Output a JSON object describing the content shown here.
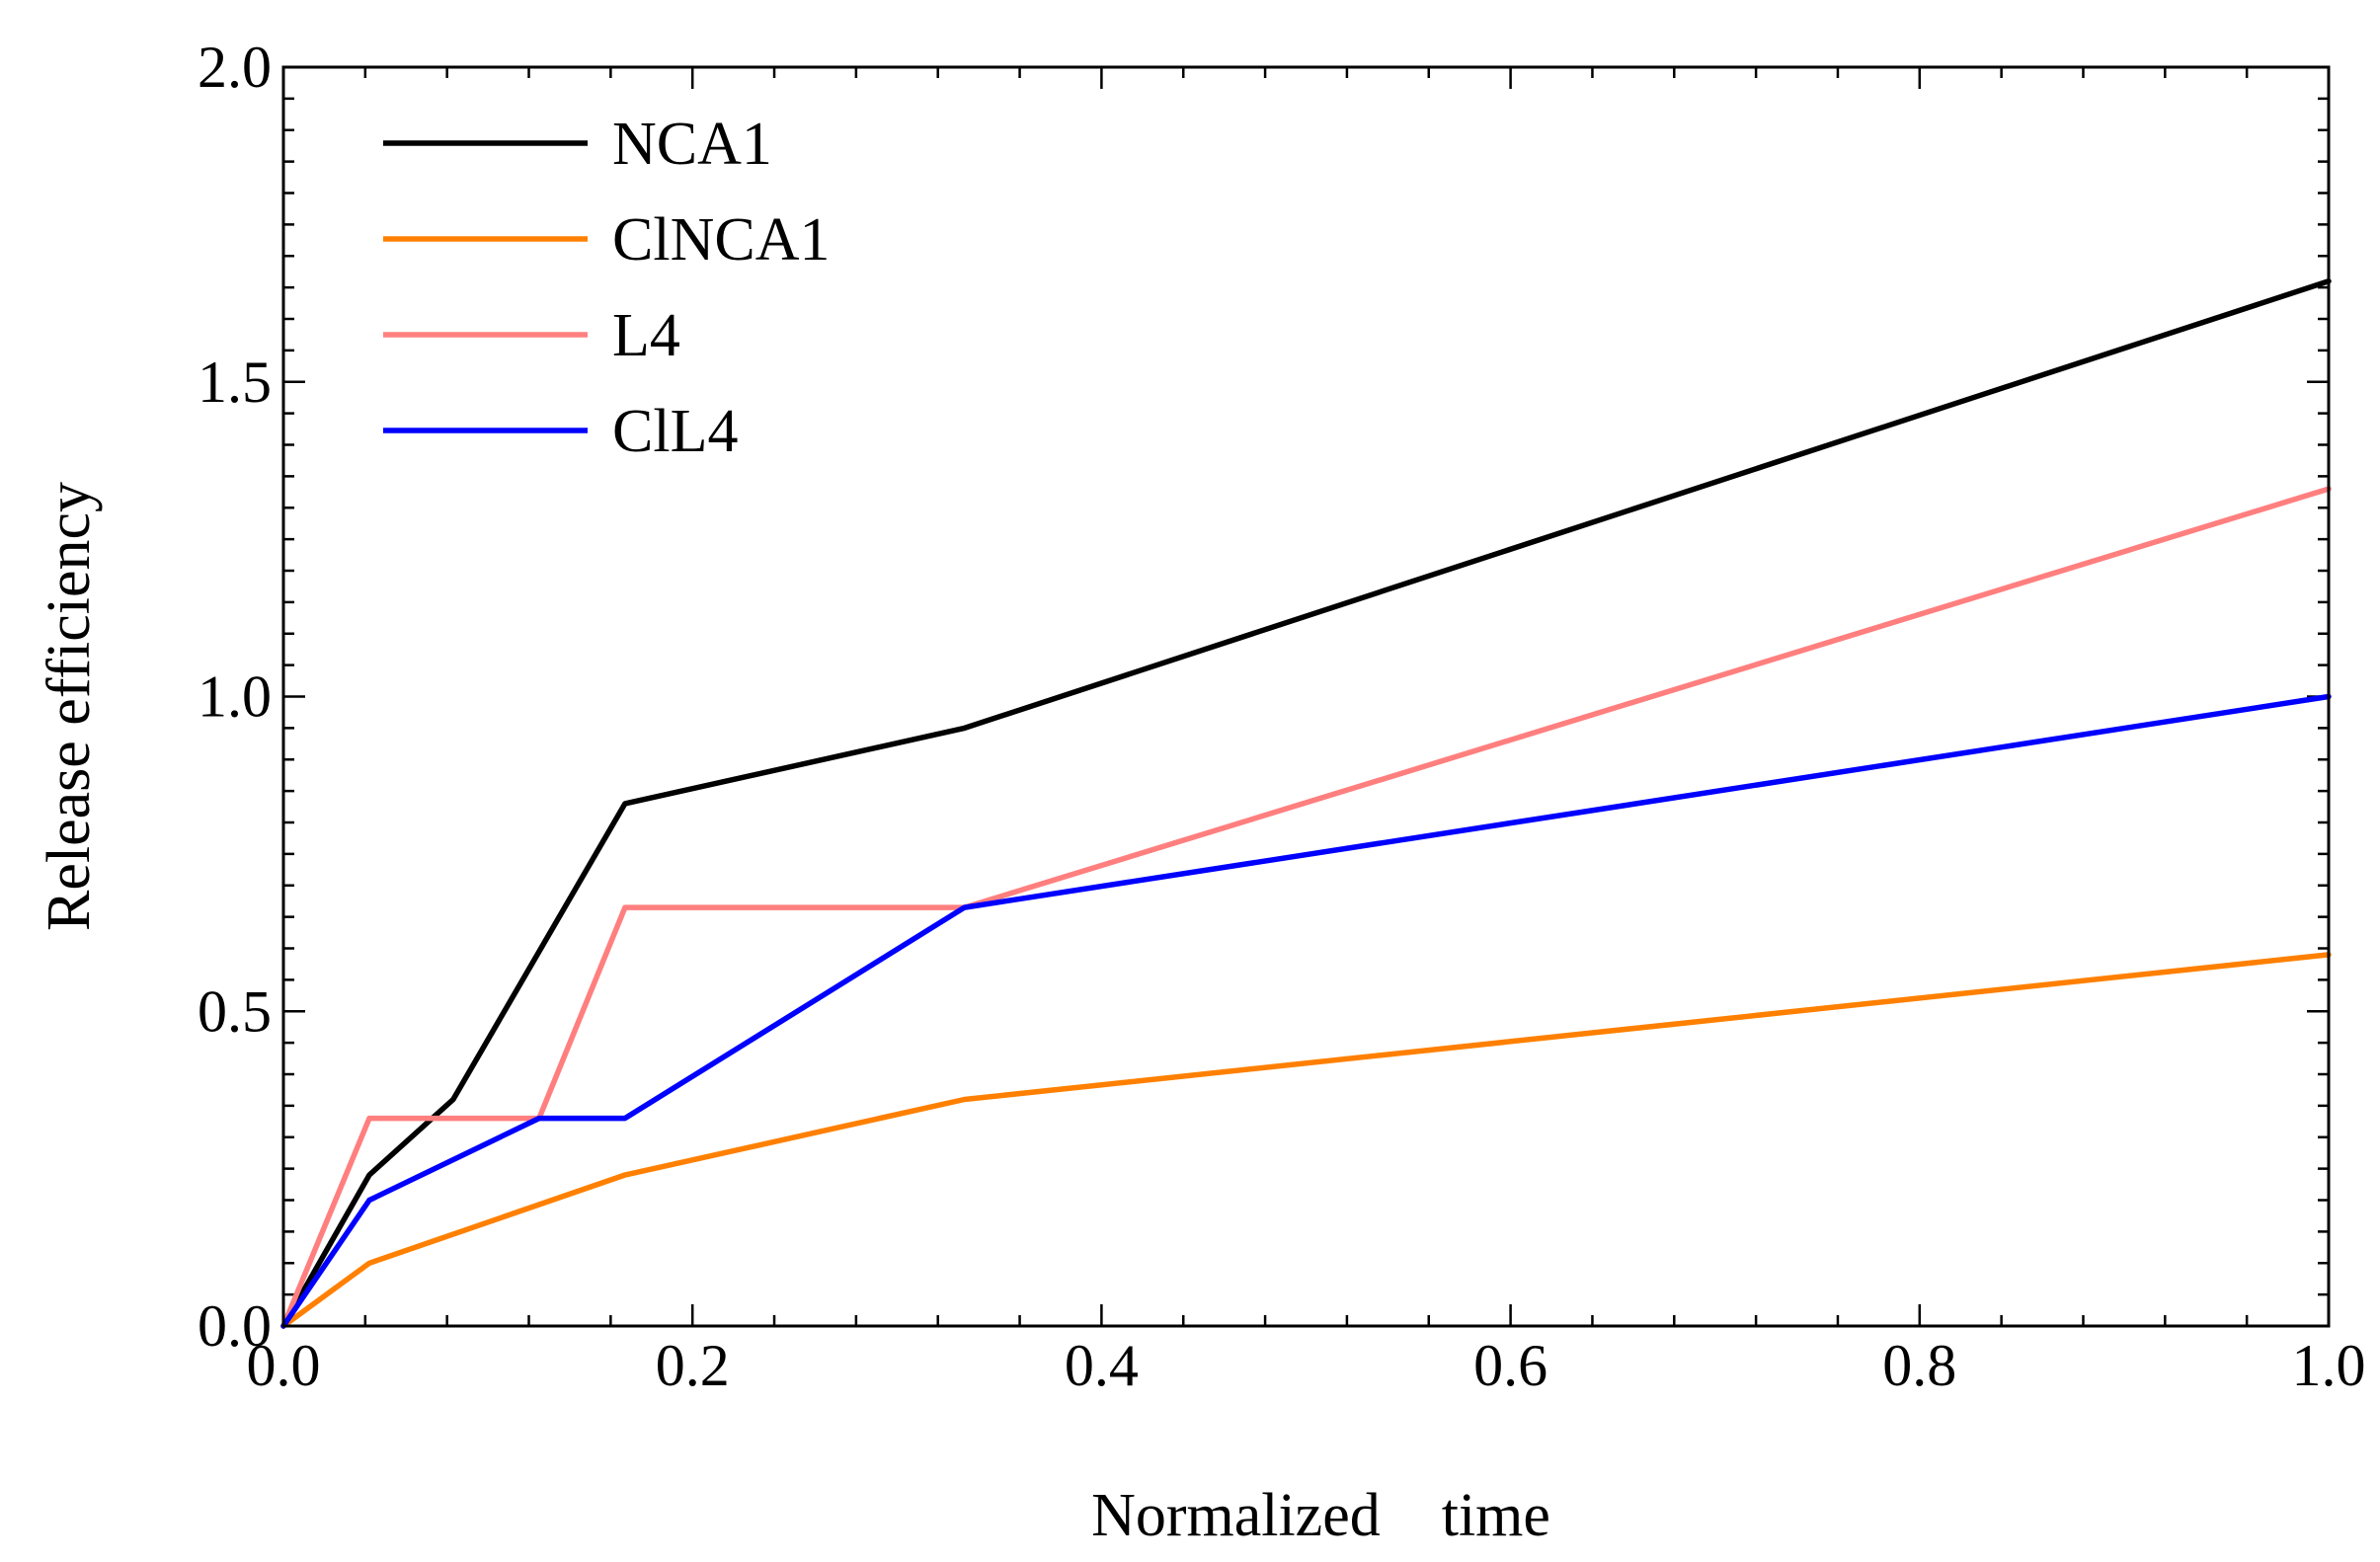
{
  "chart_data": {
    "type": "line",
    "title": "",
    "xlabel": "Normalized    time",
    "ylabel": "Release efficiency",
    "xlim": [
      0.0,
      1.0
    ],
    "ylim": [
      0.0,
      2.0
    ],
    "xticks": [
      0.0,
      0.2,
      0.4,
      0.6,
      0.8,
      1.0
    ],
    "yticks": [
      0.0,
      0.5,
      1.0,
      1.5,
      2.0
    ],
    "xtick_labels": [
      "0.0",
      "0.2",
      "0.4",
      "0.6",
      "0.8",
      "1.0"
    ],
    "ytick_labels": [
      "0.0",
      "0.5",
      "1.0",
      "1.5",
      "2.0"
    ],
    "grid": false,
    "legend_position": "top-left",
    "series": [
      {
        "name": "NCA1",
        "color": "#000000",
        "x": [
          0.0,
          0.042,
          0.083,
          0.167,
          0.333,
          1.0
        ],
        "y": [
          0.0,
          0.24,
          0.36,
          0.83,
          0.95,
          1.66
        ]
      },
      {
        "name": "ClNCA1",
        "color": "#ff8000",
        "x": [
          0.0,
          0.042,
          0.167,
          0.333,
          1.0
        ],
        "y": [
          0.0,
          0.1,
          0.24,
          0.36,
          0.59
        ]
      },
      {
        "name": "L4",
        "color": "#ff7f7f",
        "x": [
          0.0,
          0.042,
          0.125,
          0.167,
          0.333,
          1.0
        ],
        "y": [
          0.0,
          0.33,
          0.33,
          0.665,
          0.665,
          1.33
        ]
      },
      {
        "name": "ClL4",
        "color": "#0000ff",
        "x": [
          0.0,
          0.042,
          0.125,
          0.167,
          0.333,
          1.0
        ],
        "y": [
          0.0,
          0.2,
          0.33,
          0.33,
          0.665,
          1.0
        ]
      }
    ]
  }
}
